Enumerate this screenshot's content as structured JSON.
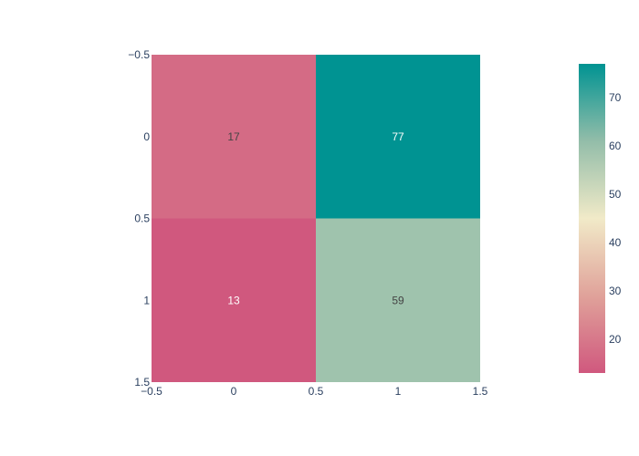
{
  "chart_data": {
    "type": "heatmap",
    "title": "",
    "xlabel": "",
    "ylabel": "",
    "x_categories": [
      "0",
      "1"
    ],
    "y_categories": [
      "0",
      "1"
    ],
    "z": [
      [
        17,
        77
      ],
      [
        13,
        59
      ]
    ],
    "text_labels": [
      [
        "17",
        "77"
      ],
      [
        "13",
        "59"
      ]
    ],
    "xlim": [
      -0.5,
      1.5
    ],
    "ylim": [
      -0.5,
      1.5
    ],
    "y_reversed": true,
    "x_ticks": [
      "−0.5",
      "0",
      "0.5",
      "1",
      "1.5"
    ],
    "x_tick_values": [
      -0.5,
      0,
      0.5,
      1,
      1.5
    ],
    "y_ticks": [
      "−0.5",
      "0",
      "0.5",
      "1",
      "1.5"
    ],
    "y_tick_values": [
      -0.5,
      0,
      0.5,
      1,
      1.5
    ],
    "colorscale": {
      "stops": [
        [
          0.0,
          "#d0587e"
        ],
        [
          0.25,
          "#e0a29a"
        ],
        [
          0.5,
          "#f1eac8"
        ],
        [
          0.75,
          "#93bda9"
        ],
        [
          1.0,
          "#009392"
        ]
      ],
      "zmin": 13,
      "zmax": 77
    },
    "colorbar": {
      "ticks": [
        "20",
        "30",
        "40",
        "50",
        "60",
        "70"
      ],
      "tick_values": [
        20,
        30,
        40,
        50,
        60,
        70
      ]
    }
  }
}
